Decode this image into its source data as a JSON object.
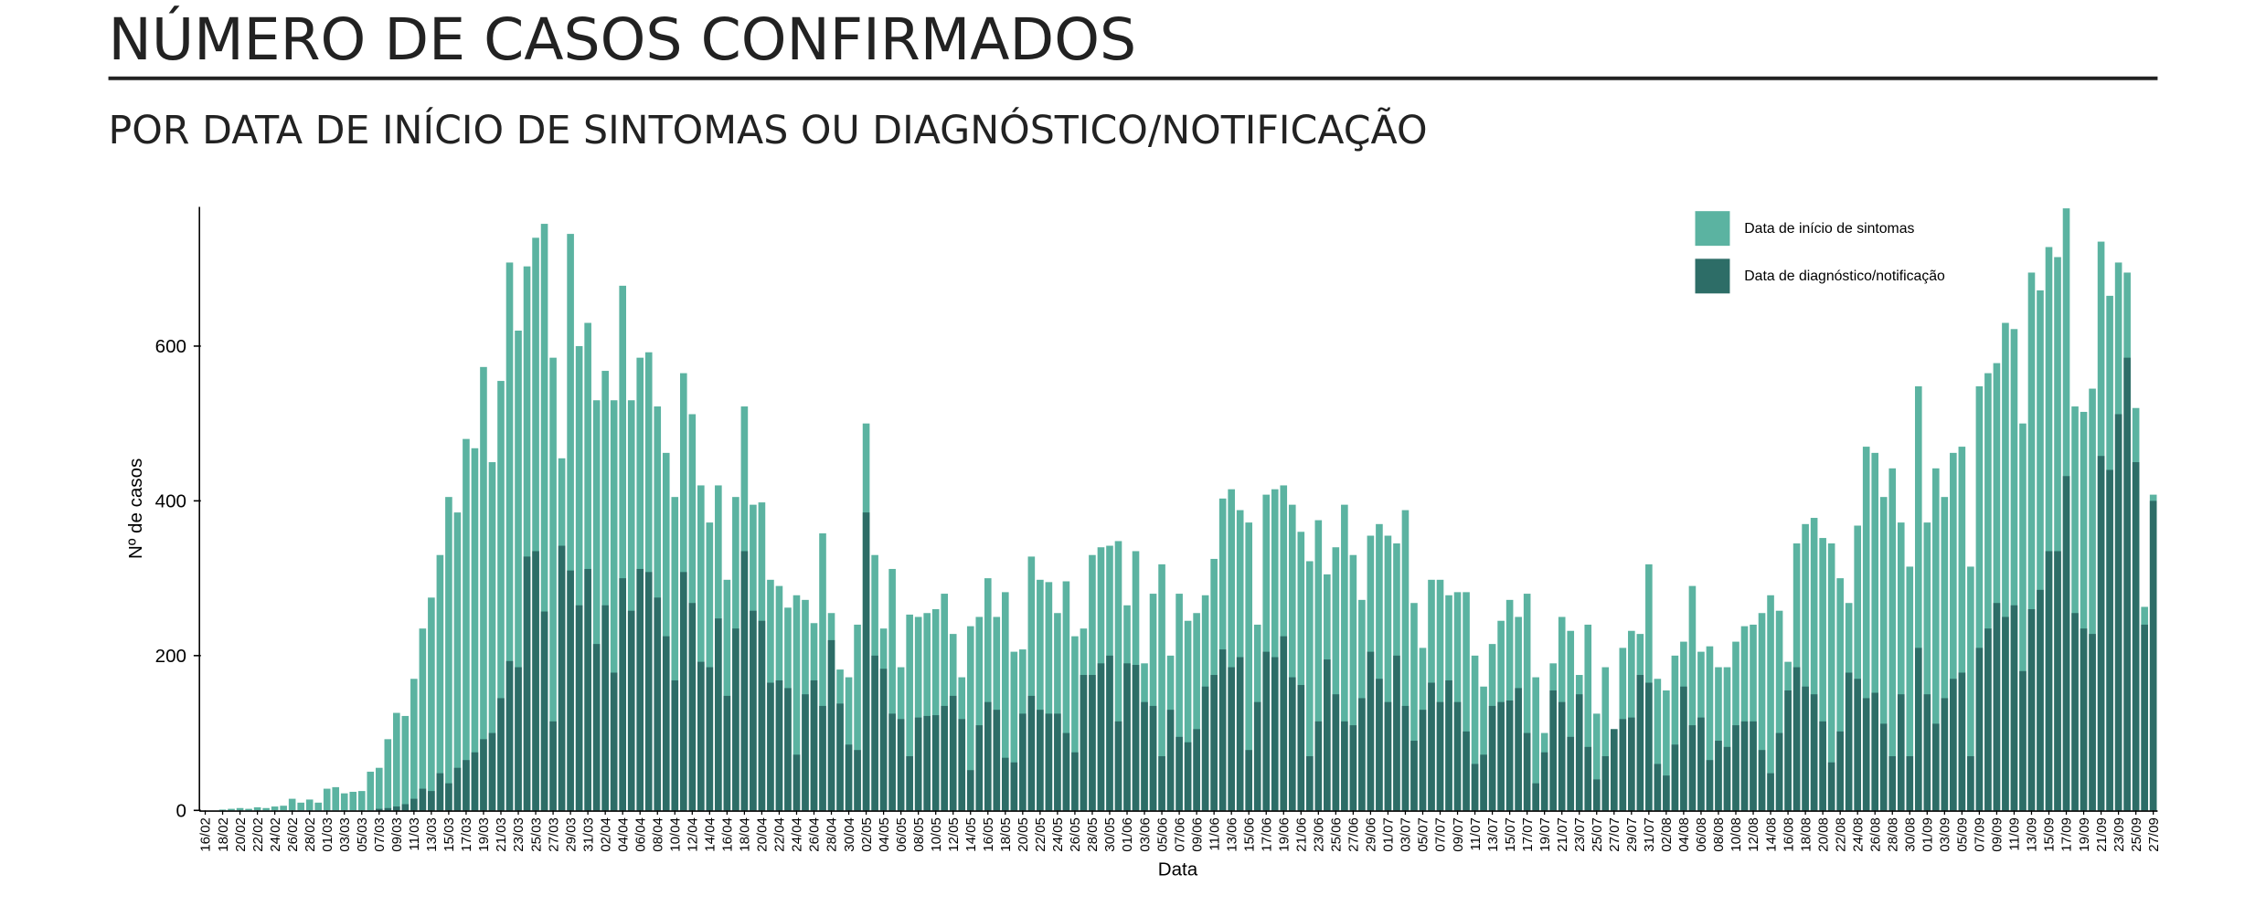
{
  "chart_data": {
    "type": "bar",
    "title": "NÚMERO DE CASOS CONFIRMADOS",
    "subtitle": "POR DATA DE INÍCIO DE SINTOMAS OU DIAGNÓSTICO/NOTIFICAÇÃO",
    "x_label": "Data",
    "y_label": "Nº de casos",
    "ylim": [
      0,
      780
    ],
    "yticks": [
      0,
      200,
      400,
      600
    ],
    "grid": false,
    "legend": "top-right",
    "categories": [
      "16/02",
      null,
      "18/02",
      null,
      "20/02",
      null,
      "22/02",
      null,
      "24/02",
      null,
      "26/02",
      null,
      "28/02",
      null,
      "01/03",
      null,
      "03/03",
      null,
      "05/03",
      null,
      "07/03",
      null,
      "09/03",
      null,
      "11/03",
      null,
      "13/03",
      null,
      "15/03",
      null,
      "17/03",
      null,
      "19/03",
      null,
      "21/03",
      null,
      "23/03",
      null,
      "25/03",
      null,
      "27/03",
      null,
      "29/03",
      null,
      "31/03",
      null,
      "02/04",
      null,
      "04/04",
      null,
      "06/04",
      null,
      "08/04",
      null,
      "10/04",
      null,
      "12/04",
      null,
      "14/04",
      null,
      "16/04",
      null,
      "18/04",
      null,
      "20/04",
      null,
      "22/04",
      null,
      "24/04",
      null,
      "26/04",
      null,
      "28/04",
      null,
      "30/04",
      null,
      "02/05",
      null,
      "04/05",
      null,
      "06/05",
      null,
      "08/05",
      null,
      "10/05",
      null,
      "12/05",
      null,
      "14/05",
      null,
      "16/05",
      null,
      "18/05",
      null,
      "20/05",
      null,
      "22/05",
      null,
      "24/05",
      null,
      "26/05",
      null,
      "28/05",
      null,
      "30/05",
      null,
      "01/06",
      null,
      "03/06",
      null,
      "05/06",
      null,
      "07/06",
      null,
      "09/06",
      null,
      "11/06",
      null,
      "13/06",
      null,
      "15/06",
      null,
      "17/06",
      null,
      "19/06",
      null,
      "21/06",
      null,
      "23/06",
      null,
      "25/06",
      null,
      "27/06",
      null,
      "29/06",
      null,
      "01/07",
      null,
      "03/07",
      null,
      "05/07",
      null,
      "07/07",
      null,
      "09/07",
      null,
      "11/07",
      null,
      "13/07",
      null,
      "15/07",
      null,
      "17/07",
      null,
      "19/07",
      null,
      "21/07",
      null,
      "23/07",
      null,
      "25/07",
      null,
      "27/07",
      null,
      "29/07",
      null,
      "31/07",
      null,
      "02/08",
      null,
      "04/08",
      null,
      "06/08",
      null,
      "08/08",
      null,
      "10/08",
      null,
      "12/08",
      null,
      "14/08",
      null,
      "16/08",
      null,
      "18/08",
      null,
      "20/08",
      null,
      "22/08",
      null,
      "24/08",
      null,
      "26/08",
      null,
      "28/08",
      null,
      "30/08",
      null,
      "01/09",
      null,
      "03/09",
      null,
      "05/09",
      null,
      "07/09",
      null,
      "09/09",
      null,
      "11/09",
      null,
      "13/09",
      null,
      "15/09",
      null,
      "17/09",
      null,
      "19/09",
      null,
      "21/09",
      null,
      "23/09",
      null,
      "25/09",
      null,
      "27/09"
    ],
    "series": [
      {
        "name": "Data de início de sintomas",
        "color": "#5bb3a1",
        "values": [
          0,
          0,
          1,
          2,
          3,
          2,
          4,
          3,
          5,
          6,
          15,
          10,
          14,
          10,
          28,
          30,
          22,
          24,
          25,
          50,
          55,
          92,
          126,
          122,
          170,
          235,
          275,
          330,
          405,
          385,
          480,
          468,
          573,
          450,
          555,
          708,
          620,
          703,
          740,
          758,
          585,
          455,
          745,
          600,
          630,
          530,
          568,
          530,
          678,
          530,
          585,
          592,
          522,
          462,
          405,
          565,
          512,
          420,
          372,
          420,
          298,
          405,
          522,
          395,
          398,
          298,
          290,
          262,
          278,
          272,
          242,
          358,
          255,
          182,
          172,
          240,
          500,
          330,
          235,
          312,
          185,
          253,
          250,
          255,
          260,
          280,
          228,
          172,
          238,
          250,
          300,
          250,
          282,
          205,
          208,
          328,
          298,
          295,
          255,
          296,
          225,
          235,
          330,
          340,
          342,
          348,
          265,
          335,
          190,
          280,
          318,
          200,
          280,
          245,
          255,
          278,
          325,
          403,
          415,
          388,
          372,
          240,
          408,
          415,
          420,
          395,
          360,
          322,
          375,
          305,
          340,
          395,
          330,
          272,
          355,
          370,
          355,
          345,
          388,
          268,
          210,
          298,
          298,
          278,
          282,
          282,
          200,
          160,
          215,
          245,
          272,
          250,
          280,
          172,
          100,
          190,
          250,
          232,
          175,
          240,
          125,
          185,
          105,
          210,
          232,
          228,
          318,
          170,
          155,
          200,
          218,
          290,
          205,
          212,
          185,
          185,
          218,
          238,
          240,
          255,
          278,
          258,
          192,
          345,
          370,
          378,
          352,
          345,
          300,
          268,
          368,
          470,
          462,
          405,
          442,
          372,
          315,
          548,
          372,
          442,
          405,
          462,
          470,
          315,
          548,
          565,
          578,
          630,
          622,
          500,
          695,
          672,
          728,
          715,
          778,
          522,
          515,
          545,
          735,
          665,
          708,
          695,
          520,
          263,
          408
        ]
      },
      {
        "name": "Data de diagnóstico/notificação",
        "color": "#2d6d67",
        "values": [
          0,
          0,
          0,
          0,
          0,
          0,
          0,
          0,
          0,
          0,
          0,
          0,
          0,
          0,
          0,
          0,
          0,
          0,
          0,
          0,
          2,
          3,
          5,
          8,
          15,
          28,
          25,
          48,
          35,
          55,
          65,
          75,
          92,
          100,
          145,
          193,
          185,
          328,
          335,
          257,
          115,
          342,
          310,
          265,
          312,
          215,
          265,
          178,
          300,
          258,
          312,
          308,
          275,
          225,
          168,
          308,
          268,
          192,
          185,
          248,
          148,
          235,
          335,
          258,
          245,
          165,
          168,
          158,
          72,
          150,
          168,
          135,
          220,
          138,
          85,
          78,
          385,
          200,
          183,
          125,
          118,
          70,
          120,
          122,
          123,
          135,
          148,
          118,
          52,
          110,
          140,
          130,
          68,
          62,
          125,
          148,
          130,
          125,
          125,
          100,
          75,
          175,
          175,
          190,
          200,
          115,
          190,
          188,
          140,
          135,
          70,
          130,
          95,
          88,
          105,
          160,
          175,
          208,
          185,
          198,
          78,
          140,
          205,
          198,
          225,
          172,
          162,
          70,
          115,
          195,
          150,
          115,
          110,
          145,
          205,
          170,
          140,
          200,
          135,
          90,
          130,
          165,
          140,
          168,
          140,
          102,
          60,
          72,
          135,
          140,
          142,
          158,
          100,
          35,
          75,
          155,
          140,
          95,
          150,
          82,
          40,
          70,
          105,
          118,
          120,
          175,
          165,
          60,
          45,
          85,
          160,
          110,
          120,
          65,
          90,
          82,
          110,
          115,
          115,
          78,
          48,
          100,
          155,
          185,
          160,
          150,
          115,
          62,
          102,
          178,
          170,
          145,
          152,
          112,
          70,
          150,
          70,
          210,
          150,
          112,
          145,
          170,
          178,
          70,
          210,
          235,
          268,
          250,
          265,
          180,
          260,
          285,
          335,
          335,
          432,
          255,
          235,
          228,
          458,
          440,
          512,
          585,
          450,
          240,
          400
        ]
      }
    ]
  }
}
